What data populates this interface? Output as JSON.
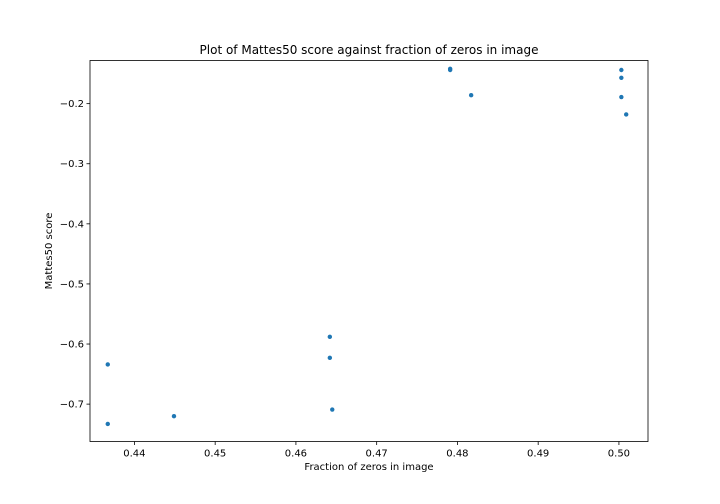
{
  "chart_data": {
    "type": "scatter",
    "title": "Plot of Mattes50 score against fraction of zeros in image",
    "xlabel": "Fraction of zeros in image",
    "ylabel": "Mattes50 score",
    "xlim": [
      0.4345,
      0.5036
    ],
    "ylim": [
      -0.7622,
      -0.1282
    ],
    "xticks": [
      0.44,
      0.45,
      0.46,
      0.47,
      0.48,
      0.49,
      0.5
    ],
    "xtick_labels": [
      "0.44",
      "0.45",
      "0.46",
      "0.47",
      "0.48",
      "0.49",
      "0.50"
    ],
    "yticks": [
      -0.2,
      -0.3,
      -0.4,
      -0.5,
      -0.6,
      -0.7
    ],
    "ytick_labels": [
      "−0.2",
      "−0.3",
      "−0.4",
      "−0.5",
      "−0.6",
      "−0.7"
    ],
    "grid": false,
    "marker_color": "#1f77b4",
    "points": [
      {
        "x": 0.4367,
        "y": -0.634
      },
      {
        "x": 0.4367,
        "y": -0.733
      },
      {
        "x": 0.4449,
        "y": -0.72
      },
      {
        "x": 0.4642,
        "y": -0.588
      },
      {
        "x": 0.4642,
        "y": -0.623
      },
      {
        "x": 0.4645,
        "y": -0.709
      },
      {
        "x": 0.4791,
        "y": -0.142
      },
      {
        "x": 0.4791,
        "y": -0.144
      },
      {
        "x": 0.4817,
        "y": -0.186
      },
      {
        "x": 0.5003,
        "y": -0.144
      },
      {
        "x": 0.5003,
        "y": -0.157
      },
      {
        "x": 0.5003,
        "y": -0.189
      },
      {
        "x": 0.5009,
        "y": -0.218
      }
    ]
  }
}
